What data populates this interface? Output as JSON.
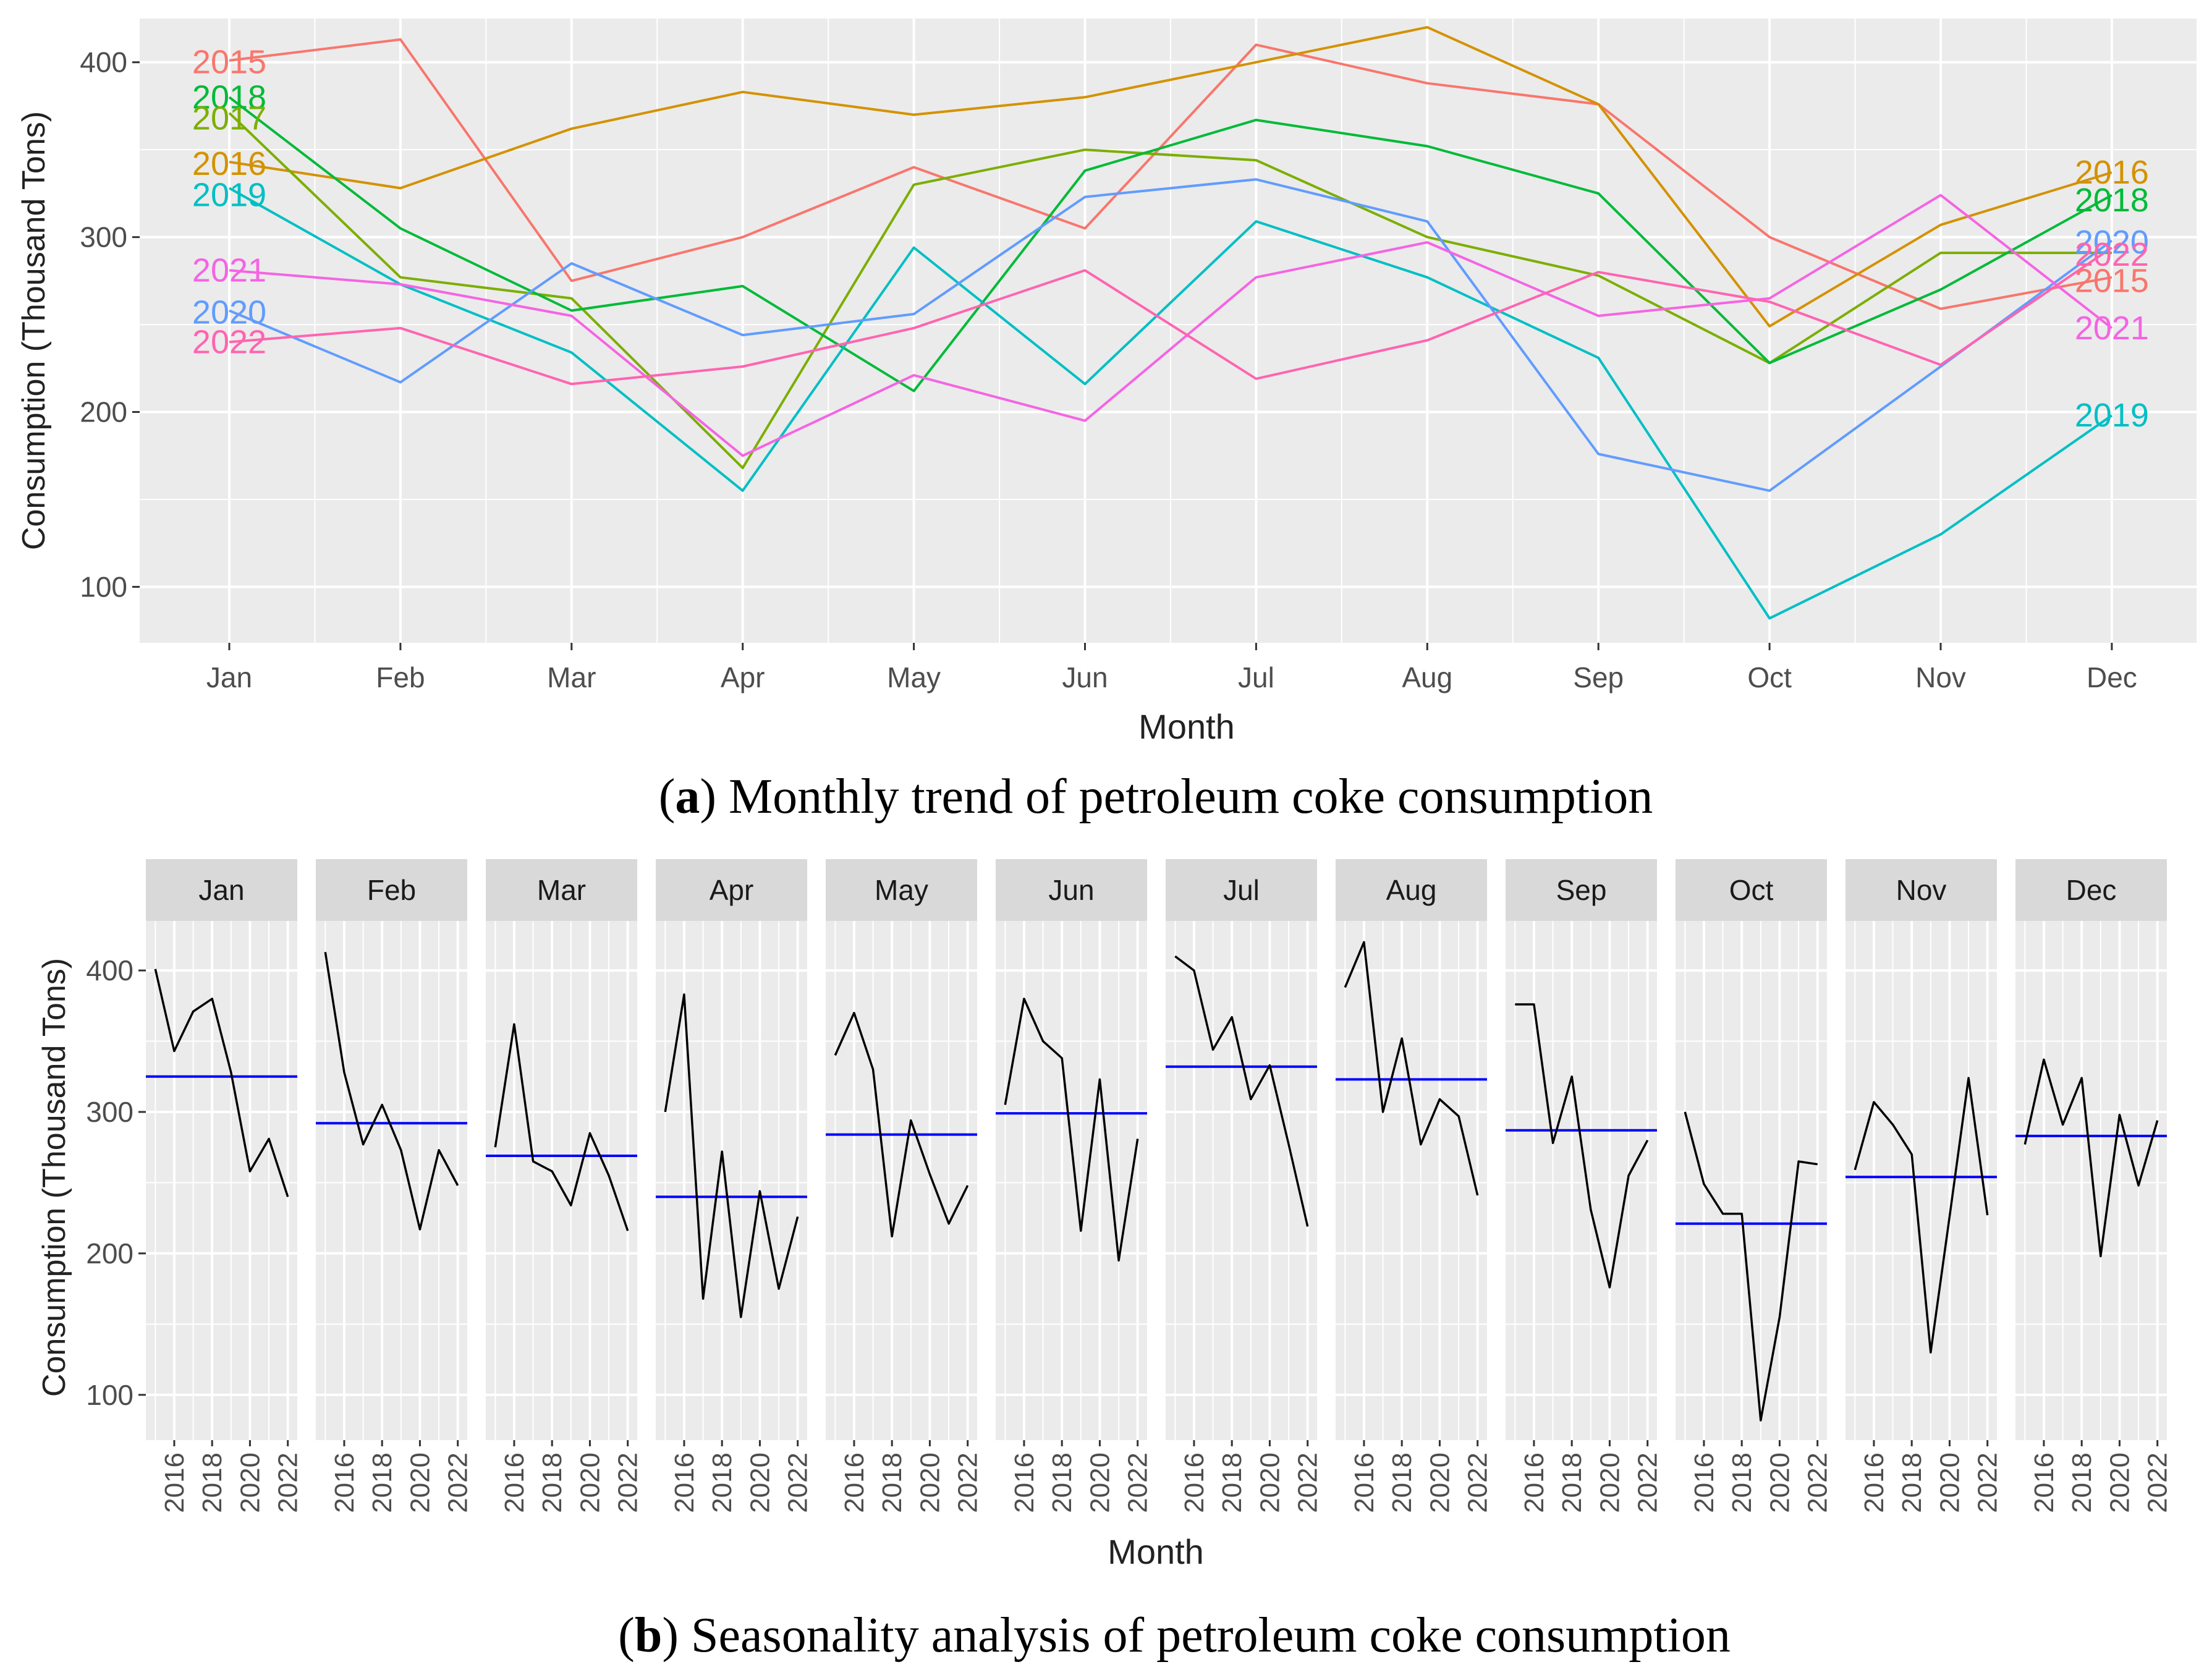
{
  "chart_data": [
    {
      "type": "line",
      "panel_label": "a",
      "title": "Monthly trend of petroleum coke consumption",
      "xlabel": "Month",
      "ylabel": "Consumption (Thousand Tons)",
      "x": [
        "Jan",
        "Feb",
        "Mar",
        "Apr",
        "May",
        "Jun",
        "Jul",
        "Aug",
        "Sep",
        "Oct",
        "Nov",
        "Dec"
      ],
      "ylim": [
        68,
        425
      ],
      "yticks": [
        100,
        200,
        300,
        400
      ],
      "grid": true,
      "series": [
        {
          "name": "2015",
          "color": "#F8766D",
          "values": [
            401,
            413,
            275,
            300,
            340,
            305,
            410,
            388,
            376,
            300,
            259,
            277
          ]
        },
        {
          "name": "2016",
          "color": "#D39200",
          "values": [
            343,
            328,
            362,
            383,
            370,
            380,
            400,
            420,
            376,
            249,
            307,
            337
          ]
        },
        {
          "name": "2017",
          "color": "#7CAE00",
          "values": [
            371,
            277,
            265,
            168,
            330,
            350,
            344,
            300,
            278,
            228,
            291,
            291
          ]
        },
        {
          "name": "2018",
          "color": "#00BA38",
          "values": [
            380,
            305,
            258,
            272,
            212,
            338,
            367,
            352,
            325,
            228,
            270,
            324
          ]
        },
        {
          "name": "2019",
          "color": "#00BFC4",
          "values": [
            328,
            273,
            234,
            155,
            294,
            216,
            309,
            277,
            231,
            82,
            130,
            198
          ]
        },
        {
          "name": "2020",
          "color": "#619CFF",
          "values": [
            258,
            217,
            285,
            244,
            256,
            323,
            333,
            309,
            176,
            155,
            226,
            298
          ]
        },
        {
          "name": "2021",
          "color": "#F564E3",
          "values": [
            281,
            273,
            255,
            175,
            221,
            195,
            277,
            297,
            255,
            265,
            324,
            248
          ]
        },
        {
          "name": "2022",
          "color": "#FF64B0",
          "values": [
            240,
            248,
            216,
            226,
            248,
            281,
            219,
            241,
            280,
            263,
            227,
            294
          ]
        }
      ],
      "left_labels": [
        "2015",
        "2018",
        "2017",
        "2016",
        "2019",
        "2021",
        "2020",
        "2022"
      ],
      "right_labels": [
        "2016",
        "2018",
        "2020",
        "2022",
        "2015",
        "2021",
        "2019"
      ]
    },
    {
      "type": "line",
      "panel_label": "b",
      "title": "Seasonality analysis of petroleum coke consumption",
      "xlabel": "Month",
      "ylabel": "Consumption (Thousand Tons)",
      "ylim": [
        68,
        435
      ],
      "yticks": [
        100,
        200,
        300,
        400
      ],
      "xticks": [
        "2016",
        "2018",
        "2020",
        "2022"
      ],
      "x_range": [
        2014.5,
        2022.5
      ],
      "years": [
        2015,
        2016,
        2017,
        2018,
        2019,
        2020,
        2021,
        2022
      ],
      "line_color": "#000000",
      "mean_color": "#0000FF",
      "facets": [
        {
          "month": "Jan",
          "values": [
            401,
            343,
            371,
            380,
            328,
            258,
            281,
            240
          ],
          "mean": 325
        },
        {
          "month": "Feb",
          "values": [
            413,
            328,
            277,
            305,
            273,
            217,
            273,
            248
          ],
          "mean": 292
        },
        {
          "month": "Mar",
          "values": [
            275,
            362,
            265,
            258,
            234,
            285,
            255,
            216
          ],
          "mean": 269
        },
        {
          "month": "Apr",
          "values": [
            300,
            383,
            168,
            272,
            155,
            244,
            175,
            226
          ],
          "mean": 240
        },
        {
          "month": "May",
          "values": [
            340,
            370,
            330,
            212,
            294,
            256,
            221,
            248
          ],
          "mean": 284
        },
        {
          "month": "Jun",
          "values": [
            305,
            380,
            350,
            338,
            216,
            323,
            195,
            281
          ],
          "mean": 299
        },
        {
          "month": "Jul",
          "values": [
            410,
            400,
            344,
            367,
            309,
            333,
            277,
            219
          ],
          "mean": 332
        },
        {
          "month": "Aug",
          "values": [
            388,
            420,
            300,
            352,
            277,
            309,
            297,
            241
          ],
          "mean": 323
        },
        {
          "month": "Sep",
          "values": [
            376,
            376,
            278,
            325,
            231,
            176,
            255,
            280
          ],
          "mean": 287
        },
        {
          "month": "Oct",
          "values": [
            300,
            249,
            228,
            228,
            82,
            155,
            265,
            263
          ],
          "mean": 221
        },
        {
          "month": "Nov",
          "values": [
            259,
            307,
            291,
            270,
            130,
            226,
            324,
            227
          ],
          "mean": 254
        },
        {
          "month": "Dec",
          "values": [
            277,
            337,
            291,
            324,
            198,
            298,
            248,
            294
          ],
          "mean": 283
        }
      ]
    }
  ]
}
